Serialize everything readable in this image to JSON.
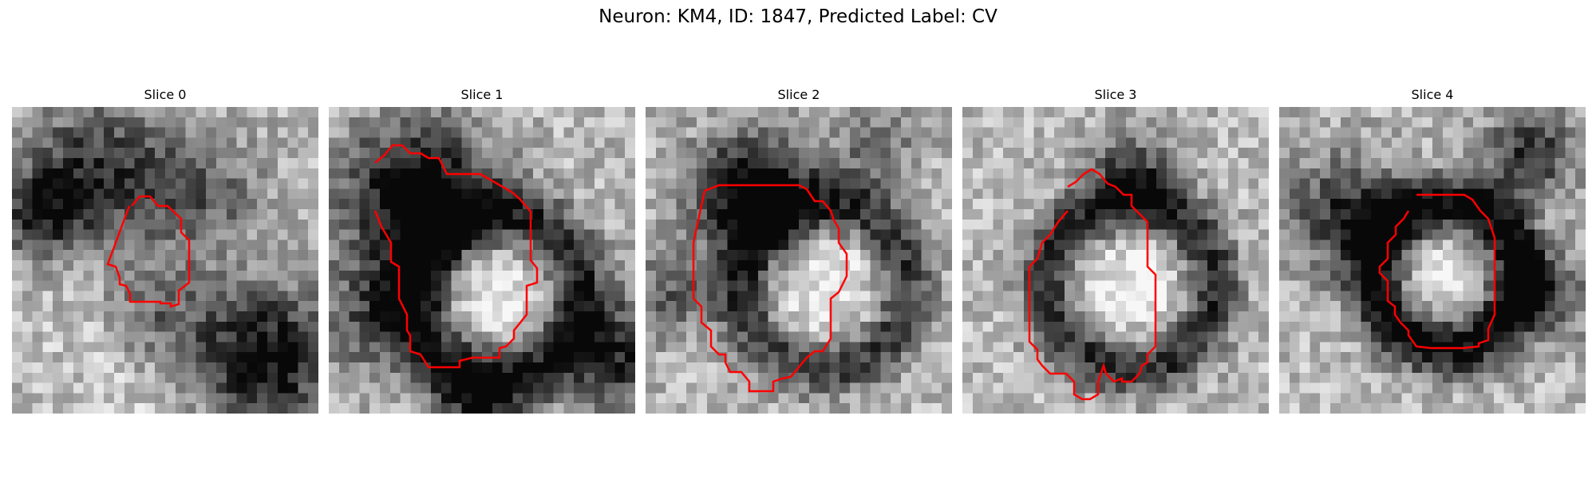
{
  "figure": {
    "title": "Neuron: KM4, ID: 1847, Predicted Label: CV"
  },
  "colors": {
    "contour": "#ff0000",
    "background": "#ffffff"
  },
  "panels": [
    {
      "title": "Slice 0",
      "icon": "grayscale-em-image"
    },
    {
      "title": "Slice 1",
      "icon": "grayscale-em-image"
    },
    {
      "title": "Slice 2",
      "icon": "grayscale-em-image"
    },
    {
      "title": "Slice 3",
      "icon": "grayscale-em-image"
    },
    {
      "title": "Slice 4",
      "icon": "grayscale-em-image"
    }
  ]
}
